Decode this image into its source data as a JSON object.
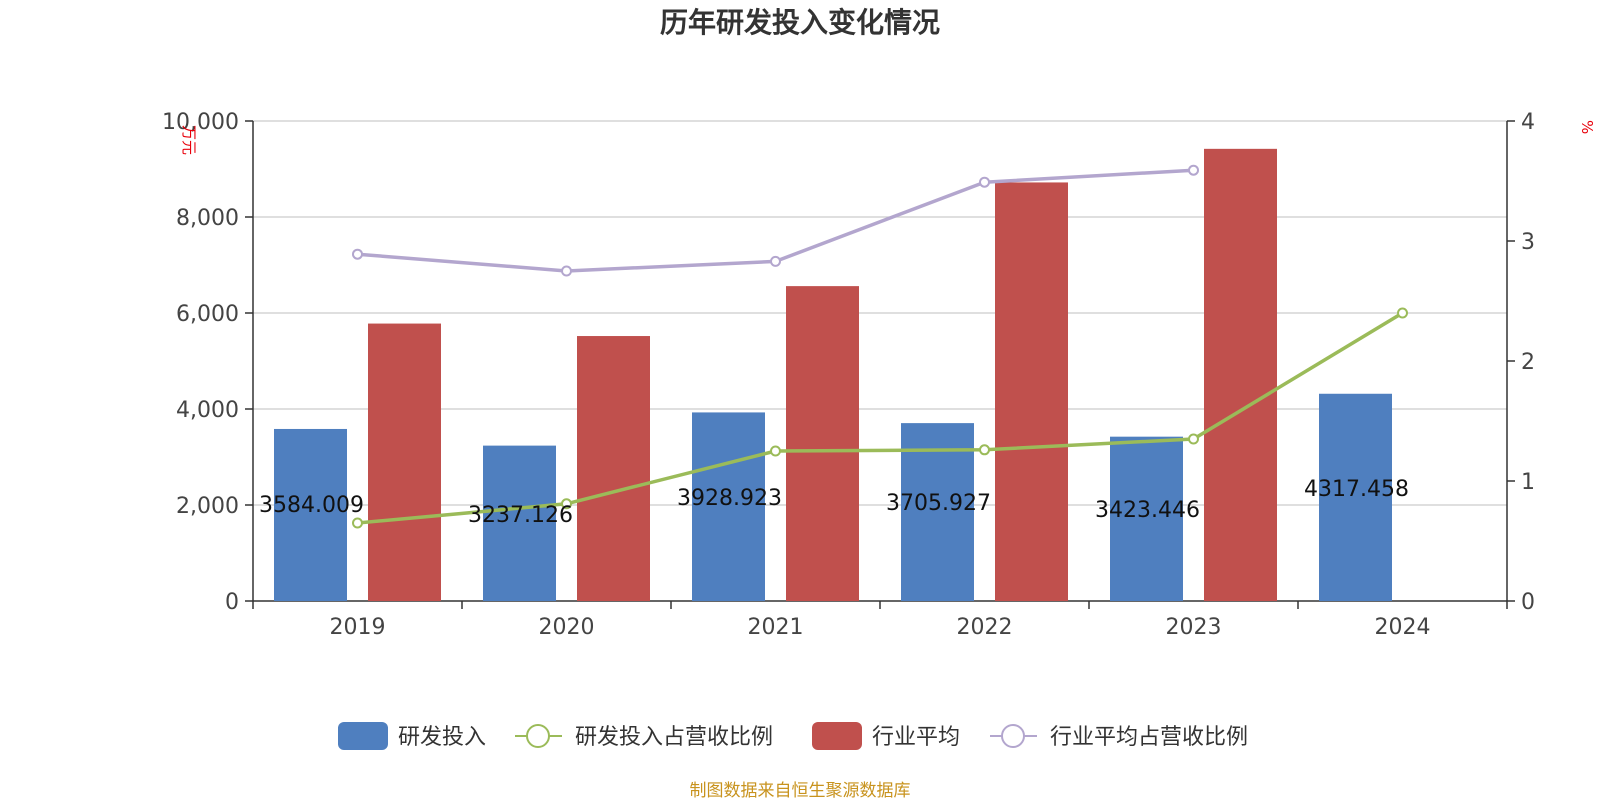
{
  "chart_data": {
    "type": "bar",
    "title": "历年研发投入变化情况",
    "categories": [
      "2019",
      "2020",
      "2021",
      "2022",
      "2023",
      "2024"
    ],
    "left_axis": {
      "unit": "万元",
      "min": 0,
      "max": 10000,
      "ticks": [
        "0",
        "2,000",
        "4,000",
        "6,000",
        "8,000",
        "10,000"
      ]
    },
    "right_axis": {
      "unit": "%",
      "min": 0,
      "max": 4,
      "ticks": [
        "0",
        "1",
        "2",
        "3",
        "4"
      ]
    },
    "bar_series": [
      {
        "name": "研发投入",
        "color": "#4f7fbf",
        "values": [
          3584.009,
          3237.126,
          3928.923,
          3705.927,
          3423.446,
          4317.458
        ],
        "labels": [
          "3584.009",
          "3237.126",
          "3928.923",
          "3705.927",
          "3423.446",
          "4317.458"
        ]
      },
      {
        "name": "行业平均",
        "color": "#c0504d",
        "values": [
          5780,
          5520,
          6560,
          8720,
          9420,
          null
        ]
      }
    ],
    "line_series": [
      {
        "name": "研发投入占营收比例",
        "color": "#9bbb59",
        "values": [
          0.65,
          0.81,
          1.25,
          1.26,
          1.35,
          2.4
        ]
      },
      {
        "name": "行业平均占营收比例",
        "color": "#b3a6ce",
        "values": [
          2.89,
          2.75,
          2.83,
          3.49,
          3.59,
          null
        ]
      }
    ],
    "grid": true,
    "legend": "bottom"
  },
  "source_note": "制图数据来自恒生聚源数据库"
}
